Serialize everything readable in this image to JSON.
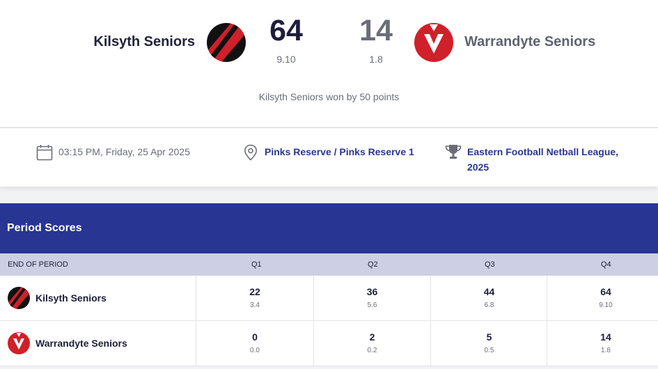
{
  "home": {
    "name": "Kilsyth Seniors",
    "score": "64",
    "detail": "9.10",
    "logo_icon": "kilsyth-logo-icon",
    "colors": {
      "primary": "#d0202a",
      "secondary": "#111111"
    }
  },
  "away": {
    "name": "Warrandyte Seniors",
    "score": "14",
    "detail": "1.8",
    "logo_icon": "warrandyte-logo-icon",
    "colors": {
      "primary": "#d0202a",
      "secondary": "#ffffff"
    }
  },
  "result": "Kilsyth Seniors won by 50 points",
  "info": {
    "datetime": "03:15 PM, Friday, 25 Apr 2025",
    "venue": "Pinks Reserve / Pinks Reserve 1",
    "competition": "Eastern Football Netball League, 2025"
  },
  "period_scores": {
    "title": "Period Scores",
    "header": {
      "label": "END OF PERIOD",
      "q1": "Q1",
      "q2": "Q2",
      "q3": "Q3",
      "q4": "Q4"
    },
    "home": [
      {
        "score": "22",
        "detail": "3.4"
      },
      {
        "score": "36",
        "detail": "5.6"
      },
      {
        "score": "44",
        "detail": "6.8"
      },
      {
        "score": "64",
        "detail": "9.10"
      }
    ],
    "away": [
      {
        "score": "0",
        "detail": "0.0"
      },
      {
        "score": "2",
        "detail": "0.2"
      },
      {
        "score": "5",
        "detail": "0.5"
      },
      {
        "score": "14",
        "detail": "1.8"
      }
    ]
  },
  "theme": {
    "accent": "#283593",
    "link": "#2a3594",
    "subheader": "#cdcfe4"
  }
}
